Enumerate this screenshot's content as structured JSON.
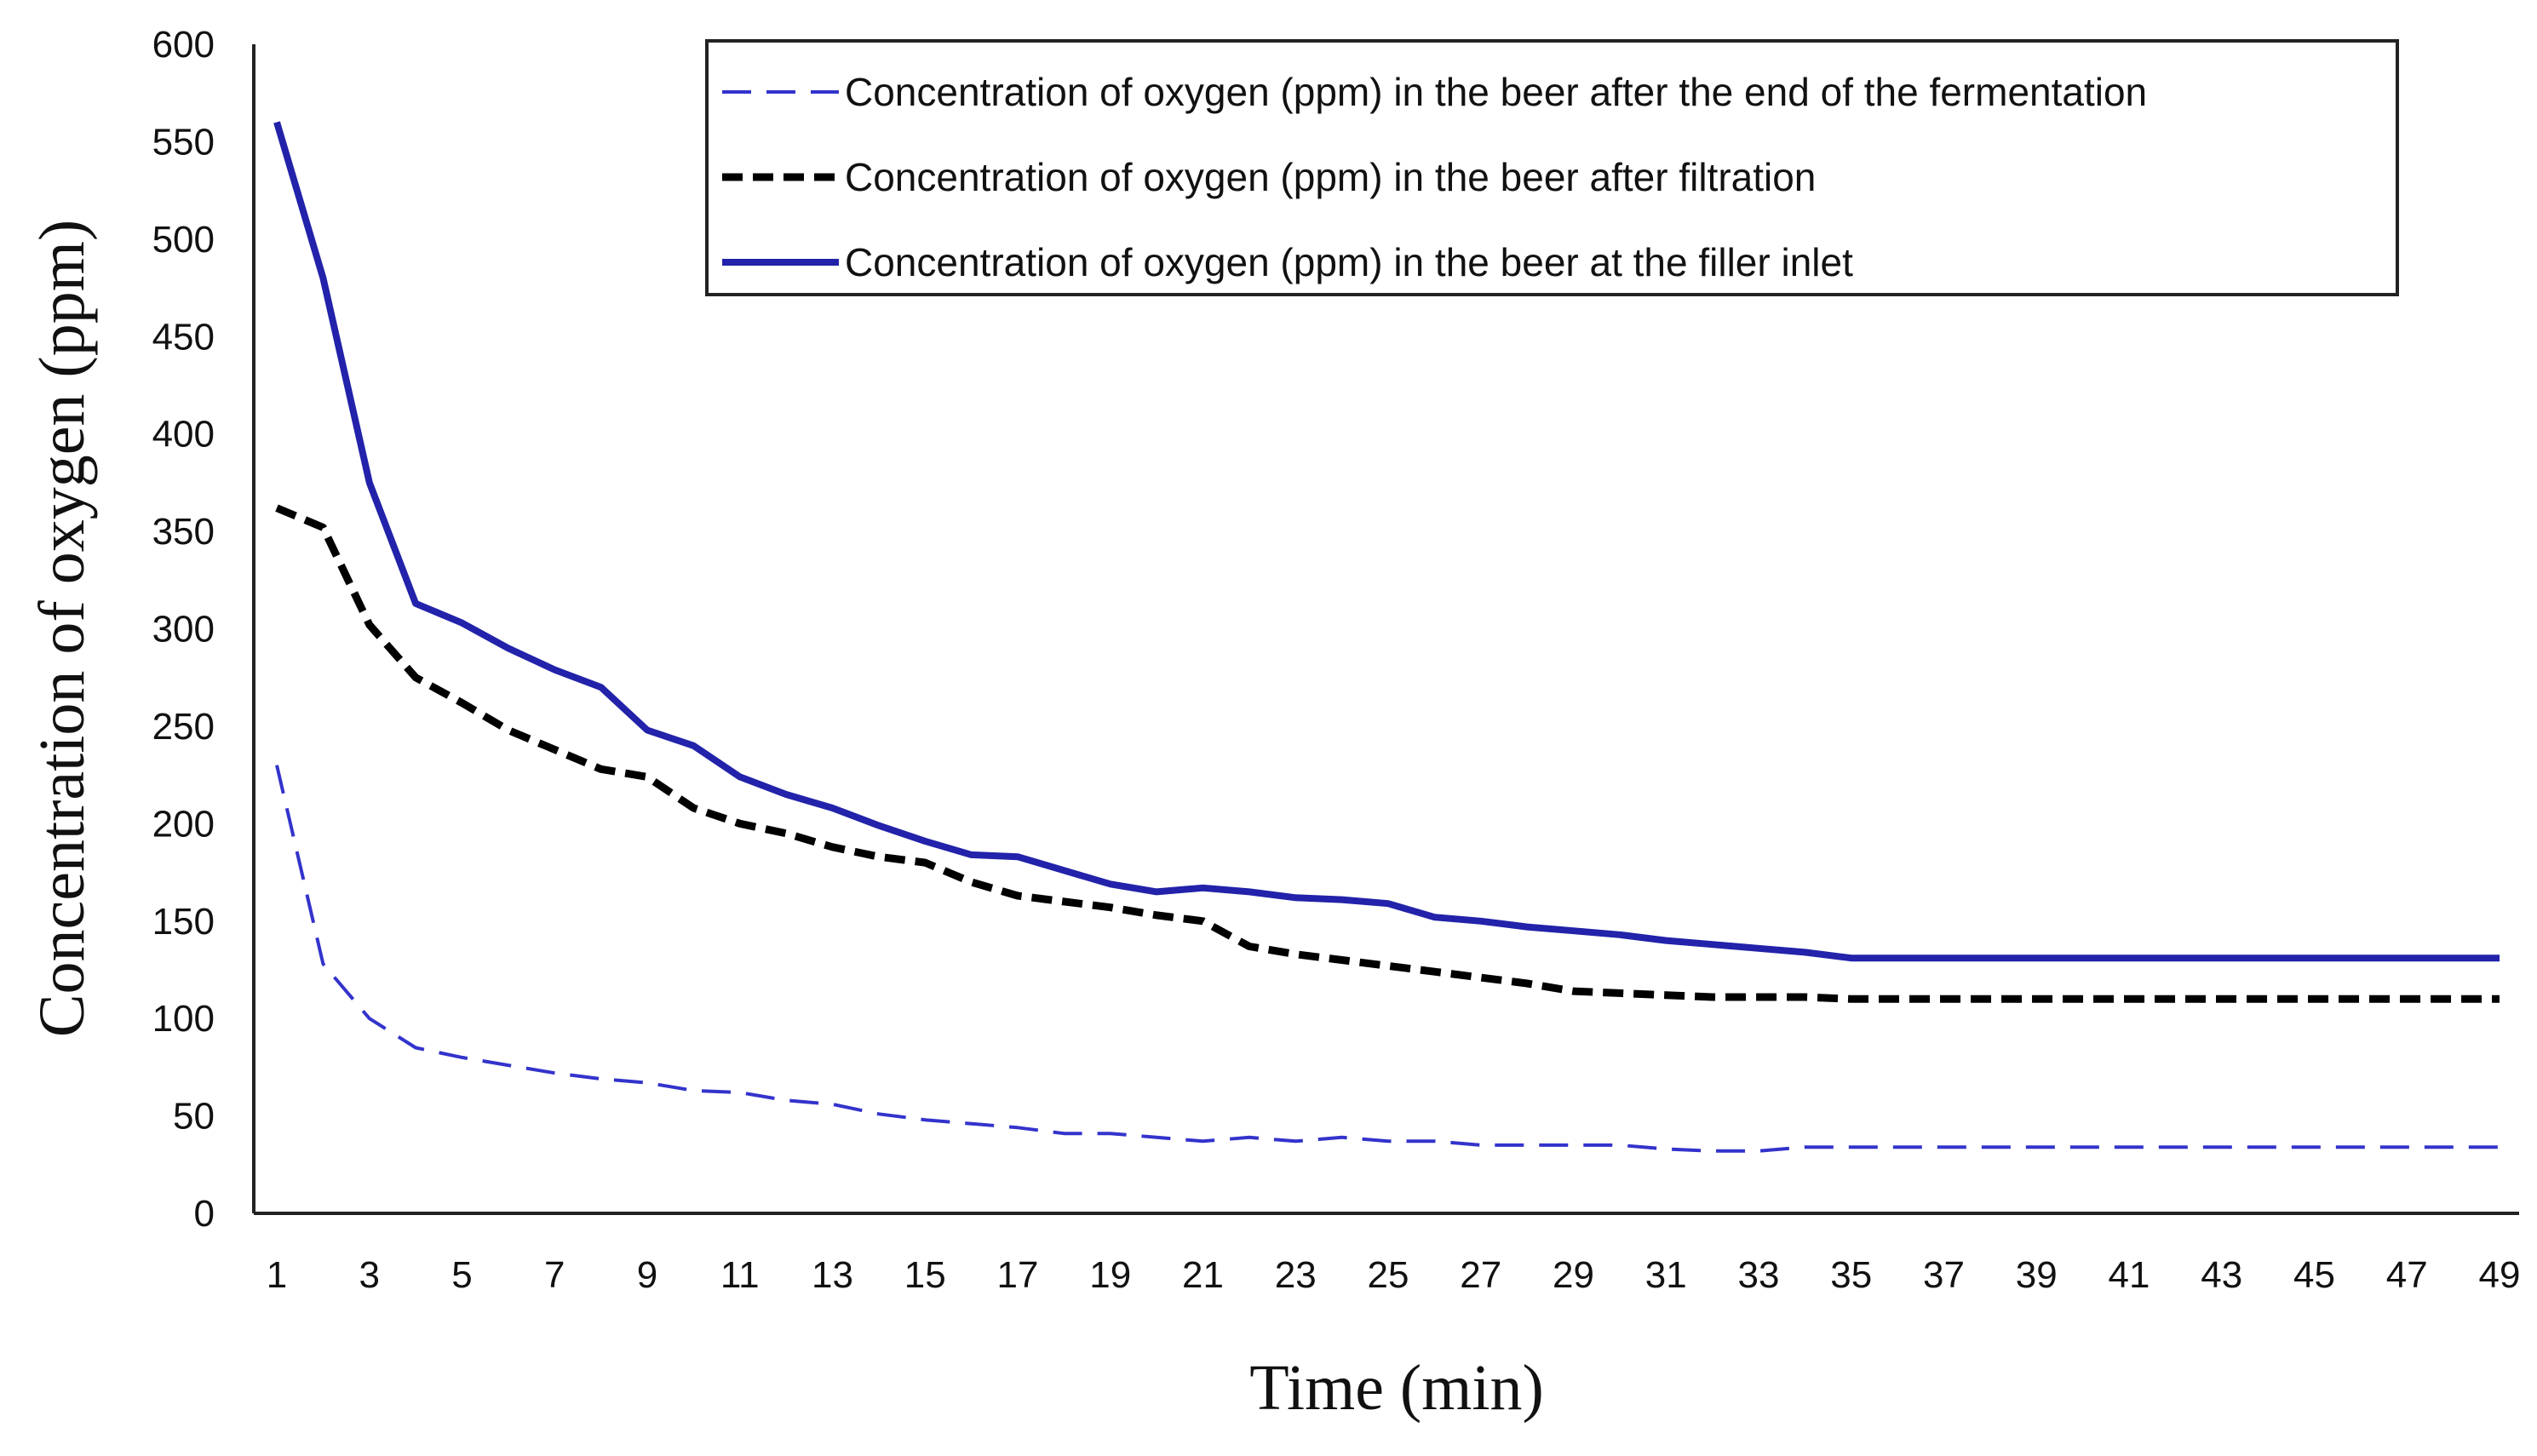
{
  "chart_data": {
    "type": "line",
    "title": "",
    "xlabel": "Time (min)",
    "ylabel": "Concentration of oxygen (ppm)",
    "xlim": [
      1,
      49
    ],
    "ylim": [
      0,
      600
    ],
    "yticks": [
      0,
      50,
      100,
      150,
      200,
      250,
      300,
      350,
      400,
      450,
      500,
      550,
      600
    ],
    "xticks": [
      1,
      3,
      5,
      7,
      9,
      11,
      13,
      15,
      17,
      19,
      21,
      23,
      25,
      27,
      29,
      31,
      33,
      35,
      37,
      39,
      41,
      43,
      45,
      47,
      49
    ],
    "grid": false,
    "legend_position": "top-right",
    "x": [
      1,
      2,
      3,
      4,
      5,
      6,
      7,
      8,
      9,
      10,
      11,
      12,
      13,
      14,
      15,
      16,
      17,
      18,
      19,
      20,
      21,
      22,
      23,
      24,
      25,
      26,
      27,
      28,
      29,
      30,
      31,
      32,
      33,
      34,
      35,
      36,
      37,
      38,
      39,
      40,
      41,
      42,
      43,
      44,
      45,
      46,
      47,
      48,
      49
    ],
    "series": [
      {
        "name": "Concentration of oxygen (ppm) in the beer after the end of the fermentation",
        "color": "#3333cc",
        "style": "dashed-thin",
        "values": [
          230,
          128,
          100,
          85,
          80,
          76,
          72,
          69,
          67,
          63,
          62,
          58,
          56,
          51,
          48,
          46,
          44,
          41,
          41,
          39,
          37,
          39,
          37,
          39,
          37,
          37,
          35,
          35,
          35,
          35,
          33,
          32,
          32,
          34,
          34,
          34,
          34,
          34,
          34,
          34,
          34,
          34,
          34,
          34,
          34,
          34,
          34,
          34,
          34
        ]
      },
      {
        "name": "Concentration of oxygen (ppm) in the beer after  filtration",
        "color": "#000000",
        "style": "dashed-thick",
        "values": [
          362,
          352,
          302,
          275,
          262,
          248,
          238,
          228,
          224,
          208,
          200,
          195,
          188,
          183,
          180,
          170,
          163,
          160,
          157,
          153,
          150,
          137,
          133,
          130,
          127,
          124,
          121,
          118,
          114,
          113,
          112,
          111,
          111,
          111,
          110,
          110,
          110,
          110,
          110,
          110,
          110,
          110,
          110,
          110,
          110,
          110,
          110,
          110,
          110
        ]
      },
      {
        "name": "Concentration of oxygen (ppm) in the beer at the filler inlet",
        "color": "#2222aa",
        "style": "solid",
        "values": [
          560,
          480,
          375,
          313,
          303,
          290,
          279,
          270,
          248,
          240,
          224,
          215,
          208,
          199,
          191,
          184,
          183,
          176,
          169,
          165,
          167,
          165,
          162,
          161,
          159,
          152,
          150,
          147,
          145,
          143,
          140,
          138,
          136,
          134,
          131,
          131,
          131,
          131,
          131,
          131,
          131,
          131,
          131,
          131,
          131,
          131,
          131,
          131,
          131
        ]
      }
    ]
  }
}
